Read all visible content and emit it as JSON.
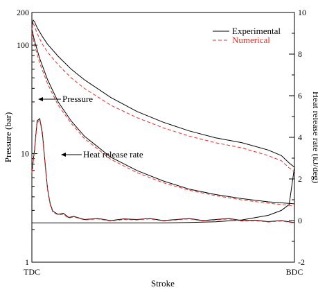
{
  "chart_data": {
    "type": "line",
    "xlabel": "Stroke",
    "ylabel_left": "Pressure (bar)",
    "ylabel_right": "Heat release rate (kJ/deg)",
    "x_tick_labels": [
      "TDC",
      "BDC"
    ],
    "xlim": [
      0,
      1
    ],
    "y_left": {
      "scale": "log",
      "ylim": [
        1,
        200
      ],
      "tick_labels": [
        "1",
        "10",
        "100",
        "200"
      ],
      "ticks": [
        1,
        10,
        100,
        200
      ]
    },
    "y_right": {
      "scale": "linear",
      "ylim": [
        -2,
        10
      ],
      "tick_labels": [
        "-2",
        "0",
        "2",
        "4",
        "6",
        "8",
        "10"
      ],
      "ticks": [
        -2,
        0,
        2,
        4,
        6,
        8,
        10
      ]
    },
    "legend": {
      "position": "top-right",
      "entries": [
        "Experimental",
        "Numerical"
      ]
    },
    "annotations": [
      {
        "label": "Pressure",
        "points_to": "pressure curve"
      },
      {
        "label": "Heat release rate",
        "points_to": "heat release rate curve"
      }
    ],
    "colors": {
      "experimental": "#000000",
      "numerical": "#e8302a"
    },
    "series": [
      {
        "name": "Experimental",
        "quantity": "pressure",
        "axis": "left",
        "style": "solid",
        "x": [
          0,
          0.005,
          0.01,
          0.02,
          0.04,
          0.06,
          0.1,
          0.15,
          0.2,
          0.3,
          0.4,
          0.5,
          0.6,
          0.7,
          0.8,
          0.9,
          0.95,
          0.98,
          1.0,
          0.98,
          0.95,
          0.9,
          0.8,
          0.7,
          0.6,
          0.5,
          0.4,
          0.3,
          0.2,
          0.15,
          0.1,
          0.06,
          0.04,
          0.02,
          0.01,
          0.0
        ],
        "y": [
          150,
          170,
          165,
          145,
          120,
          102,
          79,
          60,
          48,
          33,
          24.5,
          19.5,
          16.2,
          14.0,
          12.6,
          10.8,
          9.6,
          8.2,
          7.5,
          3.4,
          3.0,
          2.7,
          2.45,
          2.36,
          2.32,
          2.3,
          2.3,
          2.3,
          2.3,
          2.3,
          2.3,
          2.3,
          2.3,
          2.3,
          2.3,
          2.3
        ]
      },
      {
        "name": "Experimental",
        "quantity": "pressure-expansion",
        "axis": "left",
        "style": "solid",
        "x": [
          0.0,
          0.01,
          0.03,
          0.06,
          0.1,
          0.15,
          0.2,
          0.3,
          0.4,
          0.5,
          0.6,
          0.7,
          0.8,
          0.9,
          1.0
        ],
        "y": [
          140,
          110,
          75,
          48,
          30,
          20,
          14.5,
          9.3,
          7.0,
          5.6,
          4.7,
          4.2,
          3.85,
          3.6,
          3.45
        ]
      },
      {
        "name": "Numerical",
        "quantity": "pressure",
        "axis": "left",
        "style": "dashed",
        "x": [
          0,
          0.005,
          0.01,
          0.02,
          0.04,
          0.06,
          0.1,
          0.15,
          0.2,
          0.3,
          0.4,
          0.5,
          0.6,
          0.7,
          0.8,
          0.9,
          0.95,
          0.98,
          1.0
        ],
        "y": [
          140,
          158,
          150,
          128,
          102,
          86,
          66,
          50,
          40,
          28,
          21.5,
          17.3,
          14.5,
          12.6,
          11.3,
          9.6,
          8.6,
          7.4,
          6.8
        ]
      },
      {
        "name": "Numerical",
        "quantity": "pressure-expansion",
        "axis": "left",
        "style": "dashed",
        "x": [
          0.0,
          0.01,
          0.03,
          0.06,
          0.1,
          0.15,
          0.2,
          0.3,
          0.4,
          0.5,
          0.6,
          0.7,
          0.8,
          0.9,
          1.0
        ],
        "y": [
          130,
          100,
          68,
          44,
          28,
          19,
          13.8,
          8.9,
          6.7,
          5.4,
          4.6,
          4.1,
          3.75,
          3.5,
          3.3
        ]
      },
      {
        "name": "Experimental",
        "quantity": "heat release rate",
        "axis": "right",
        "style": "solid",
        "x": [
          0.0,
          0.01,
          0.02,
          0.03,
          0.04,
          0.05,
          0.06,
          0.07,
          0.08,
          0.1,
          0.12,
          0.14,
          0.16,
          0.2,
          0.25,
          0.3,
          0.35,
          0.4,
          0.45,
          0.5,
          0.55,
          0.6,
          0.65,
          0.7,
          0.75,
          0.8,
          0.85,
          0.9,
          0.95,
          1.0
        ],
        "y": [
          2.3,
          3.4,
          4.8,
          4.9,
          4.2,
          2.8,
          1.5,
          0.8,
          0.45,
          0.3,
          0.35,
          0.15,
          0.2,
          0.05,
          0.1,
          0.0,
          0.08,
          0.05,
          0.1,
          0.0,
          0.05,
          0.1,
          0.0,
          0.05,
          0.1,
          0.0,
          0.02,
          -0.05,
          0.0,
          -0.1
        ]
      },
      {
        "name": "Numerical",
        "quantity": "heat release rate",
        "axis": "right",
        "style": "dashed",
        "x": [
          0.0,
          0.01,
          0.02,
          0.03,
          0.04,
          0.05,
          0.06,
          0.07,
          0.08,
          0.1,
          0.12,
          0.14,
          0.16,
          0.2,
          0.25,
          0.3,
          0.35,
          0.4,
          0.45,
          0.5,
          0.55,
          0.6,
          0.65,
          0.7,
          0.75,
          0.8,
          0.85,
          0.9,
          0.95,
          1.0
        ],
        "y": [
          2.3,
          3.3,
          4.7,
          4.85,
          4.1,
          2.7,
          1.45,
          0.75,
          0.4,
          0.28,
          0.3,
          0.12,
          0.18,
          0.03,
          0.08,
          -0.02,
          0.05,
          0.03,
          0.08,
          -0.02,
          0.03,
          0.08,
          -0.02,
          0.03,
          0.08,
          -0.02,
          0.0,
          -0.07,
          -0.02,
          -0.12
        ]
      }
    ]
  }
}
